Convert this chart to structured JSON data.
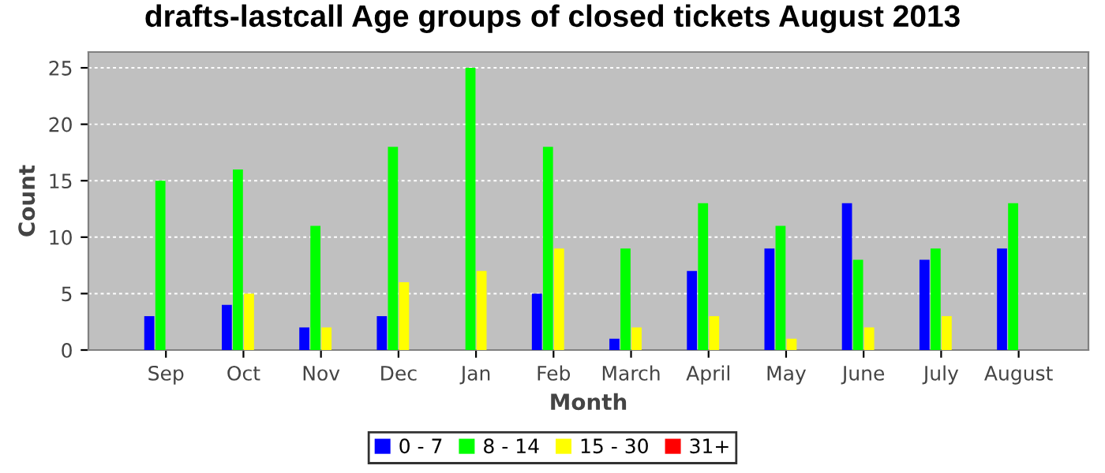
{
  "chart_data": {
    "type": "bar",
    "title": "drafts-lastcall Age groups of closed tickets August 2013",
    "xlabel": "Month",
    "ylabel": "Count",
    "categories": [
      "Sep",
      "Oct",
      "Nov",
      "Dec",
      "Jan",
      "Feb",
      "March",
      "April",
      "May",
      "June",
      "July",
      "August"
    ],
    "series": [
      {
        "name": "0 - 7",
        "color": "#0000ff",
        "values": [
          3,
          4,
          2,
          3,
          0,
          5,
          1,
          7,
          9,
          13,
          8,
          9
        ]
      },
      {
        "name": "8 - 14",
        "color": "#00ff00",
        "values": [
          15,
          16,
          11,
          18,
          25,
          18,
          9,
          13,
          11,
          8,
          9,
          13
        ]
      },
      {
        "name": "15 - 30",
        "color": "#ffff00",
        "values": [
          0,
          5,
          2,
          6,
          7,
          9,
          2,
          3,
          1,
          2,
          3,
          0
        ]
      },
      {
        "name": "31+",
        "color": "#ff0000",
        "values": [
          0,
          0,
          0,
          0,
          0,
          0,
          0,
          0,
          0,
          0,
          0,
          0
        ]
      }
    ],
    "ylim": [
      0,
      26.4
    ],
    "yticks": [
      0,
      5,
      10,
      15,
      20,
      25
    ],
    "grid": "y",
    "legend": "bottom"
  }
}
